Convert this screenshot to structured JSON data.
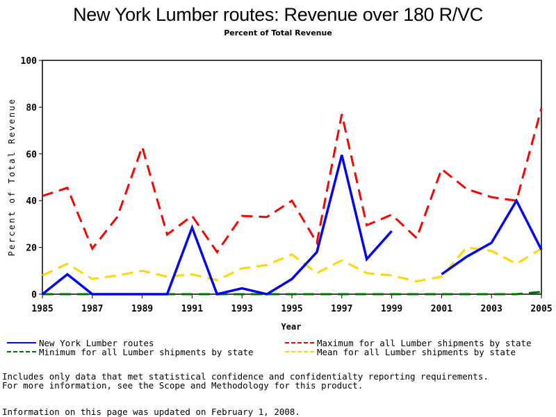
{
  "chart_data": {
    "type": "line",
    "title": "New York Lumber routes: Revenue over 180 R/VC",
    "subtitle": "Percent of Total Revenue",
    "xlabel": "Year",
    "ylabel": "Percent of Total Revenue",
    "xlim": [
      1985,
      2005
    ],
    "ylim": [
      0,
      100
    ],
    "x_ticks": [
      "1985",
      "1987",
      "1989",
      "1991",
      "1993",
      "1995",
      "1997",
      "1999",
      "2001",
      "2003",
      "2005"
    ],
    "y_ticks": [
      "0",
      "20",
      "40",
      "60",
      "80",
      "100"
    ],
    "grid": false,
    "legend_position": "bottom",
    "x": [
      1985,
      1986,
      1987,
      1988,
      1989,
      1990,
      1991,
      1992,
      1993,
      1994,
      1995,
      1996,
      1997,
      1998,
      1999,
      2000,
      2001,
      2002,
      2003,
      2004,
      2005
    ],
    "series": [
      {
        "name": "New York Lumber routes",
        "color": "#0000ff",
        "style": "solid",
        "values": [
          0,
          8.5,
          0,
          0,
          0,
          0,
          28.5,
          0,
          2.5,
          0,
          6.5,
          18,
          59.5,
          15,
          27,
          null,
          8.5,
          16,
          22,
          40,
          19
        ]
      },
      {
        "name": "Maximum for all Lumber shipments by state",
        "color": "#ff0000",
        "style": "dashed",
        "values": [
          42,
          45.5,
          19.5,
          33,
          63,
          25.5,
          33.5,
          18,
          33.5,
          33,
          40,
          22,
          77,
          29.5,
          34,
          24,
          53.5,
          45,
          41.5,
          40,
          79.5
        ]
      },
      {
        "name": "Minimum for all Lumber shipments by state",
        "color": "#007000",
        "style": "dashed",
        "values": [
          0,
          0,
          0,
          0,
          0,
          0,
          0,
          0,
          0,
          0,
          0,
          0,
          0,
          0,
          0,
          0,
          0,
          0,
          0,
          0,
          1
        ]
      },
      {
        "name": "Mean for all Lumber shipments by state",
        "color": "#ffd700",
        "style": "dashed",
        "values": [
          8,
          13,
          6.5,
          8,
          10,
          7.5,
          8.5,
          6,
          11,
          12.5,
          17,
          9,
          14.5,
          9,
          8,
          5.5,
          7.5,
          20,
          18.5,
          13,
          19.5
        ]
      }
    ]
  },
  "legend": {
    "items": [
      {
        "label": "New York Lumber routes",
        "color": "#0000ff",
        "style": "solid"
      },
      {
        "label": "Maximum for all Lumber shipments by state",
        "color": "#ff0000",
        "style": "dashed"
      },
      {
        "label": "Minimum for all Lumber shipments by state",
        "color": "#007000",
        "style": "dashed"
      },
      {
        "label": "Mean for all Lumber shipments by state",
        "color": "#ffd700",
        "style": "dashed"
      }
    ]
  },
  "notes": {
    "line1": "Includes only data that met statistical confidence and confidentialty reporting requirements.",
    "line2": "For more information, see the Scope and Methodology for this product.",
    "updated": "Information on this page was updated on February 1, 2008."
  }
}
